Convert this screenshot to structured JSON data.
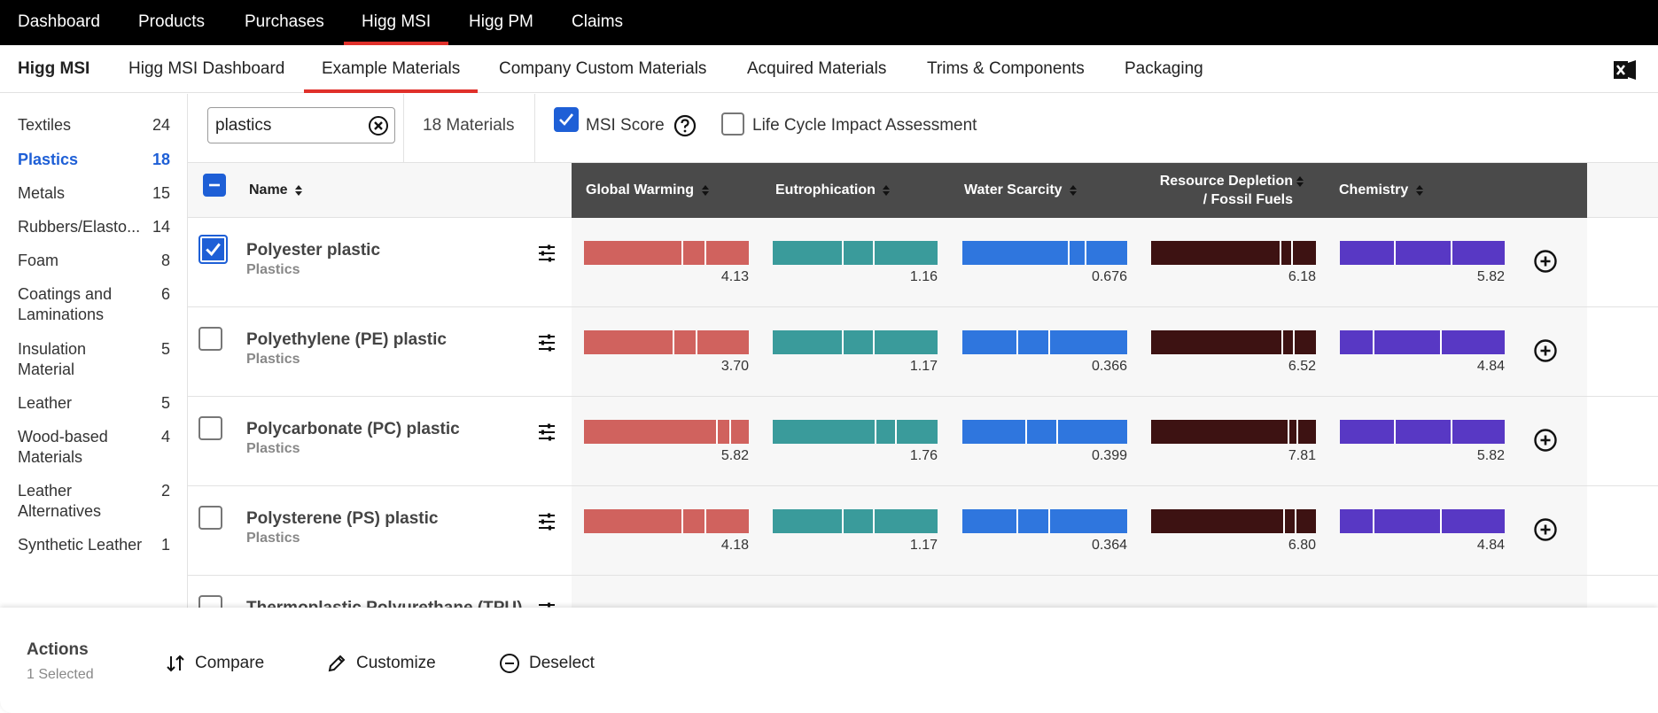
{
  "top_nav": [
    {
      "label": "Dashboard",
      "active": false
    },
    {
      "label": "Products",
      "active": false
    },
    {
      "label": "Purchases",
      "active": false
    },
    {
      "label": "Higg MSI",
      "active": true
    },
    {
      "label": "Higg PM",
      "active": false
    },
    {
      "label": "Claims",
      "active": false
    }
  ],
  "sub_nav": {
    "brand": "Higg MSI",
    "items": [
      {
        "label": "Higg MSI Dashboard",
        "active": false
      },
      {
        "label": "Example Materials",
        "active": true
      },
      {
        "label": "Company Custom Materials",
        "active": false
      },
      {
        "label": "Acquired Materials",
        "active": false
      },
      {
        "label": "Trims & Components",
        "active": false
      },
      {
        "label": "Packaging",
        "active": false
      }
    ],
    "export_icon": "excel-icon"
  },
  "sidebar": {
    "items": [
      {
        "label": "Textiles",
        "count": "24",
        "active": false
      },
      {
        "label": "Plastics",
        "count": "18",
        "active": true
      },
      {
        "label": "Metals",
        "count": "15",
        "active": false
      },
      {
        "label": "Rubbers/Elasto...",
        "count": "14",
        "active": false
      },
      {
        "label": "Foam",
        "count": "8",
        "active": false
      },
      {
        "label": "Coatings and Laminations",
        "count": "6",
        "active": false
      },
      {
        "label": "Insulation Material",
        "count": "5",
        "active": false
      },
      {
        "label": "Leather",
        "count": "5",
        "active": false
      },
      {
        "label": "Wood-based Materials",
        "count": "4",
        "active": false
      },
      {
        "label": "Leather Alternatives",
        "count": "2",
        "active": false
      },
      {
        "label": "Synthetic Leather",
        "count": "1",
        "active": false
      }
    ]
  },
  "filters": {
    "search_value": "plastics",
    "materials_count": "18 Materials",
    "msi_score": {
      "label": "MSI Score",
      "checked": true
    },
    "lca": {
      "label": "Life Cycle Impact Assessment",
      "checked": false
    }
  },
  "table": {
    "name_header": "Name",
    "columns": [
      {
        "key": "gw",
        "label": "Global Warming",
        "color": "#d0625e"
      },
      {
        "key": "eu",
        "label": "Eutrophication",
        "color": "#3a9b9b"
      },
      {
        "key": "ws",
        "label": "Water Scarcity",
        "color": "#2f76de"
      },
      {
        "key": "rd",
        "label": "Resource Depletion",
        "label2": "/ Fossil Fuels",
        "color": "#3d1212"
      },
      {
        "key": "ch",
        "label": "Chemistry",
        "color": "#5838c4"
      }
    ],
    "rows": [
      {
        "name": "Polyester plastic",
        "category": "Plastics",
        "checked": true,
        "values": {
          "gw": "4.13",
          "eu": "1.16",
          "ws": "0.676",
          "rd": "6.18",
          "ch": "5.82"
        },
        "segments": {
          "gw": [
            0.59,
            0.73
          ],
          "eu": [
            0.42,
            0.61
          ],
          "ws": [
            0.64,
            0.74
          ],
          "rd": [
            0.78,
            0.85
          ],
          "ch": [
            0.33,
            0.67
          ]
        }
      },
      {
        "name": "Polyethylene (PE) plastic",
        "category": "Plastics",
        "checked": false,
        "values": {
          "gw": "3.70",
          "eu": "1.17",
          "ws": "0.366",
          "rd": "6.52",
          "ch": "4.84"
        },
        "segments": {
          "gw": [
            0.54,
            0.68
          ],
          "eu": [
            0.42,
            0.61
          ],
          "ws": [
            0.33,
            0.52
          ],
          "rd": [
            0.79,
            0.86
          ],
          "ch": [
            0.2,
            0.61
          ]
        }
      },
      {
        "name": "Polycarbonate (PC) plastic",
        "category": "Plastics",
        "checked": false,
        "values": {
          "gw": "5.82",
          "eu": "1.76",
          "ws": "0.399",
          "rd": "7.81",
          "ch": "5.82"
        },
        "segments": {
          "gw": [
            0.8,
            0.88
          ],
          "eu": [
            0.62,
            0.74
          ],
          "ws": [
            0.38,
            0.57
          ],
          "rd": [
            0.83,
            0.88
          ],
          "ch": [
            0.33,
            0.67
          ]
        }
      },
      {
        "name": "Polysterene (PS) plastic",
        "category": "Plastics",
        "checked": false,
        "values": {
          "gw": "4.18",
          "eu": "1.17",
          "ws": "0.364",
          "rd": "6.80",
          "ch": "4.84"
        },
        "segments": {
          "gw": [
            0.59,
            0.73
          ],
          "eu": [
            0.42,
            0.61
          ],
          "ws": [
            0.33,
            0.52
          ],
          "rd": [
            0.8,
            0.87
          ],
          "ch": [
            0.2,
            0.61
          ]
        }
      },
      {
        "name": "Thermoplastic Polyurethane (TPU)",
        "category": "",
        "checked": false,
        "values": {},
        "segments": {}
      }
    ]
  },
  "actions": {
    "title": "Actions",
    "selected": "1 Selected",
    "compare": "Compare",
    "customize": "Customize",
    "deselect": "Deselect"
  }
}
